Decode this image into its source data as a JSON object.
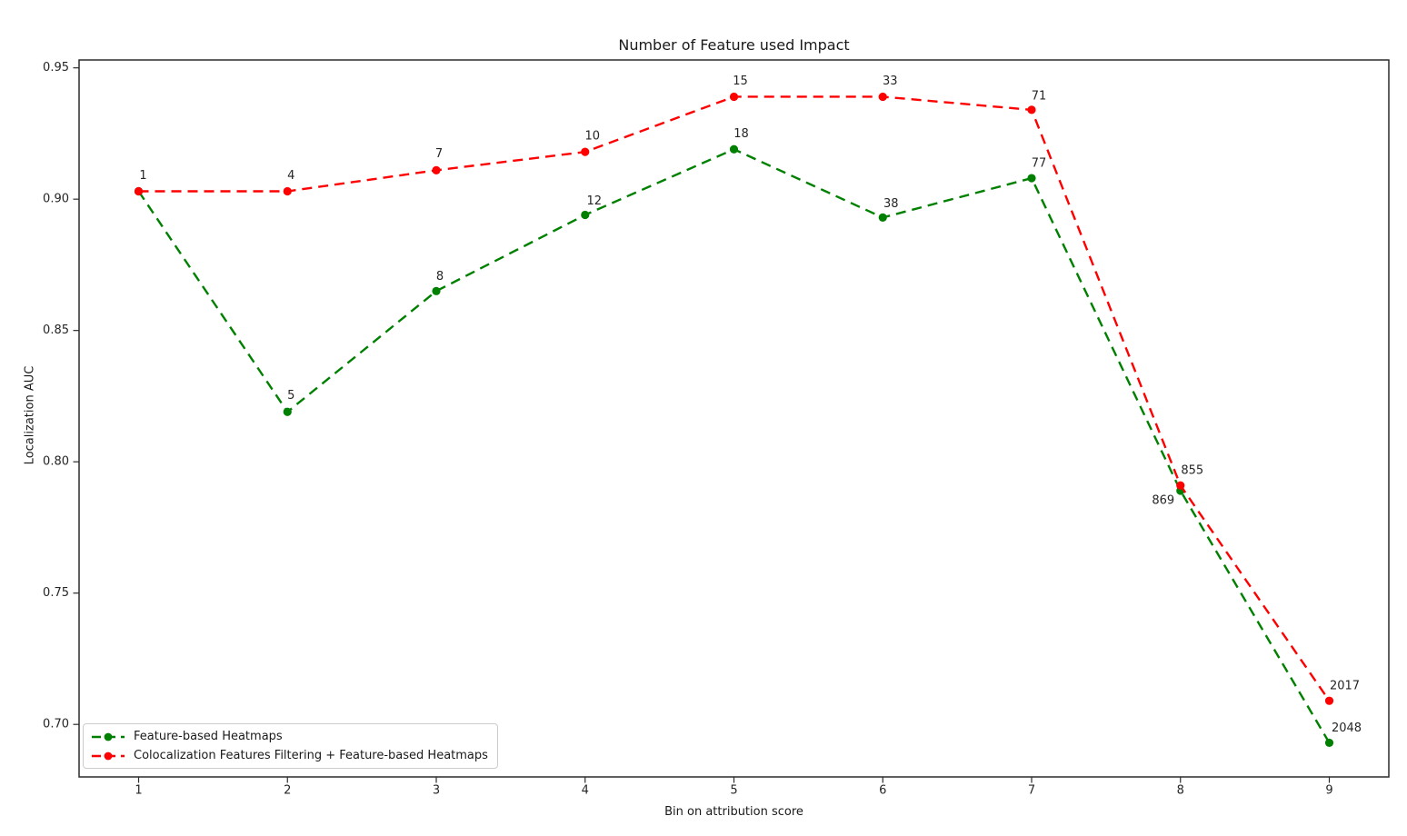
{
  "figure": {
    "background": "#ffffff"
  },
  "chart_data": {
    "type": "line",
    "title": "Number of Feature used Impact",
    "xlabel": "Bin on attribution score",
    "ylabel": "Localization AUC",
    "grid": false,
    "legend_position": "lower left",
    "xlim": [
      0.6,
      9.4
    ],
    "ylim": [
      0.68,
      0.953
    ],
    "x_ticks": [
      1,
      2,
      3,
      4,
      5,
      6,
      7,
      8,
      9
    ],
    "x_tick_labels": [
      "1",
      "2",
      "3",
      "4",
      "5",
      "6",
      "7",
      "8",
      "9"
    ],
    "y_ticks": [
      0.7,
      0.75,
      0.8,
      0.85,
      0.9,
      0.95
    ],
    "y_tick_labels": [
      "0.70",
      "0.75",
      "0.80",
      "0.85",
      "0.90",
      "0.95"
    ],
    "x": [
      1,
      2,
      3,
      4,
      5,
      6,
      7,
      8,
      9
    ],
    "series": [
      {
        "name": "Feature-based Heatmaps",
        "color": "#008000",
        "linestyle": "dashed",
        "marker": "circle",
        "values": [
          0.903,
          0.819,
          0.865,
          0.894,
          0.919,
          0.893,
          0.908,
          0.789,
          0.693
        ],
        "point_labels": [
          null,
          "5",
          "8",
          "12",
          "18",
          "38",
          "77",
          "869",
          "2048"
        ],
        "label_offsets": [
          null,
          [
            4,
            -18
          ],
          [
            4,
            -16
          ],
          [
            10,
            -15
          ],
          [
            8,
            -17
          ],
          [
            9,
            -15
          ],
          [
            8,
            -16
          ],
          [
            -19,
            11
          ],
          [
            19,
            -16
          ]
        ]
      },
      {
        "name": "Colocalization Features Filtering + Feature-based Heatmaps",
        "color": "#ff0000",
        "linestyle": "dashed",
        "marker": "circle",
        "values": [
          0.903,
          0.903,
          0.911,
          0.918,
          0.939,
          0.939,
          0.934,
          0.791,
          0.709
        ],
        "point_labels": [
          "1",
          "4",
          "7",
          "10",
          "15",
          "33",
          "71",
          "855",
          "2017"
        ],
        "label_offsets": [
          [
            5,
            -17
          ],
          [
            4,
            -17
          ],
          [
            3,
            -18
          ],
          [
            8,
            -17
          ],
          [
            7,
            -17
          ],
          [
            8,
            -17
          ],
          [
            8,
            -15
          ],
          [
            13,
            -16
          ],
          [
            17,
            -16
          ]
        ]
      }
    ]
  },
  "legend": {
    "items": [
      {
        "label": "Feature-based Heatmaps",
        "color": "#008000"
      },
      {
        "label": "Colocalization Features Filtering + Feature-based Heatmaps",
        "color": "#ff0000"
      }
    ]
  }
}
